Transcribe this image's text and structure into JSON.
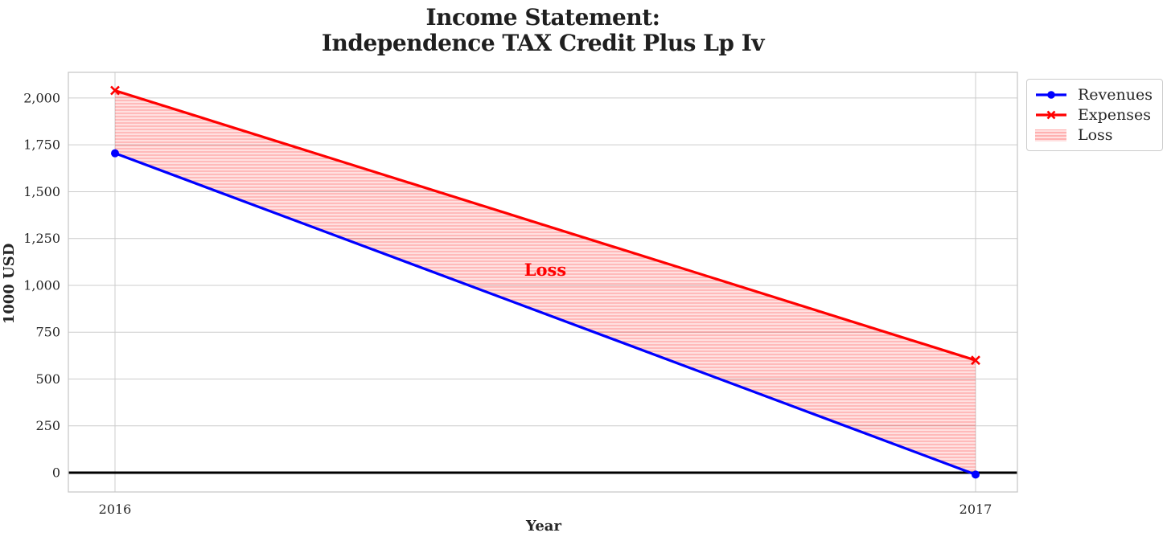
{
  "chart_data": {
    "type": "line",
    "title": "Income Statement:\nIndependence TAX Credit Plus Lp Iv",
    "title_lines": [
      "Income Statement:",
      "Independence TAX Credit Plus Lp Iv"
    ],
    "xlabel": "Year",
    "ylabel": "1000 USD",
    "x": [
      2016,
      2017
    ],
    "x_tick_labels": [
      "2016",
      "2017"
    ],
    "yticks": [
      0,
      250,
      500,
      750,
      1000,
      1250,
      1500,
      1750,
      2000
    ],
    "ytick_labels": [
      "0",
      "250",
      "500",
      "750",
      "1,000",
      "1,250",
      "1,500",
      "1,750",
      "2,000"
    ],
    "ylim": [
      -103,
      2137
    ],
    "grid": true,
    "zero_line": true,
    "series": [
      {
        "name": "Revenues",
        "color": "#0000ff",
        "marker": "circle",
        "values": [
          1705,
          -10
        ]
      },
      {
        "name": "Expenses",
        "color": "#ff0000",
        "marker": "x",
        "values": [
          2040,
          600
        ]
      }
    ],
    "loss_region": {
      "between": [
        "Expenses",
        "Revenues"
      ],
      "fill_color": "rgba(255,0,0,0.12)",
      "hatch": "horizontal",
      "hatch_color": "rgba(255,0,0,0.30)",
      "annotation": {
        "text": "Loss",
        "color": "#ff0000"
      }
    },
    "legend": {
      "position": "outside-top-right",
      "items": [
        "Revenues",
        "Expenses",
        "Loss"
      ]
    },
    "colors": {
      "grid": "#cccccc",
      "axis_border": "#c8c8c8",
      "text": "#262626",
      "zero_line": "#000000",
      "background": "#ffffff"
    }
  }
}
